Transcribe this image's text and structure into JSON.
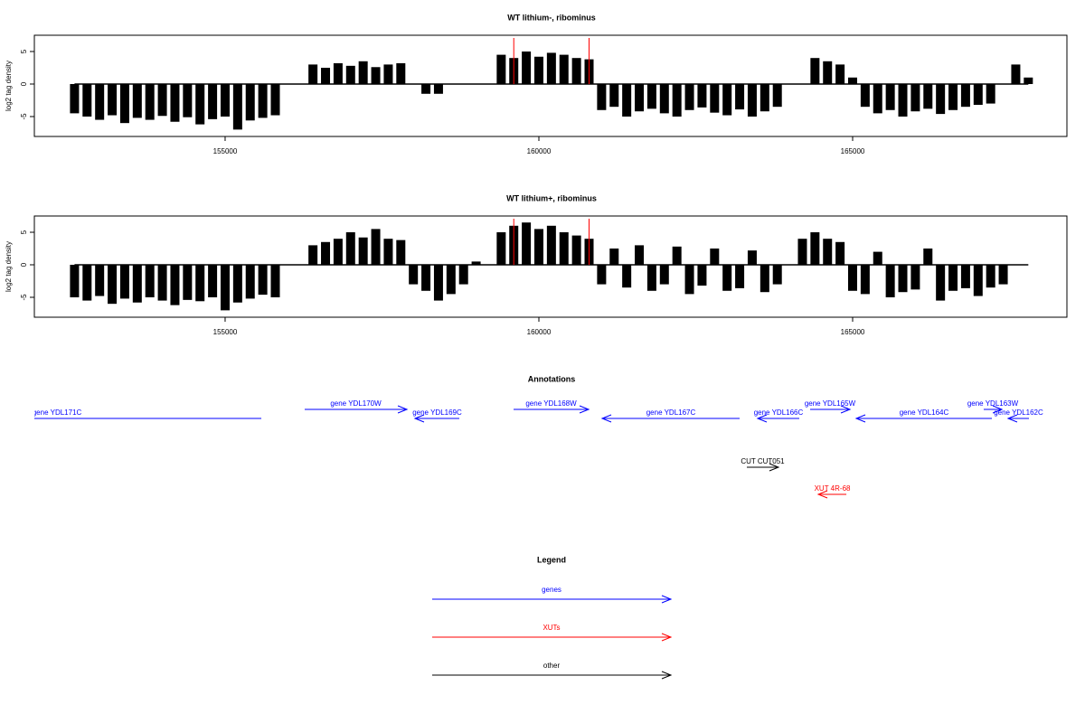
{
  "chart_data": [
    {
      "type": "bar",
      "title": "WT lithium-, ribominus",
      "ylabel": "log2 tag density",
      "color": "#000000",
      "xlim": [
        151960,
        168415
      ],
      "ylim": [
        -8.06,
        7.5
      ],
      "xticks": [
        155000,
        160000,
        165000
      ],
      "yticks": [
        -5,
        0,
        5
      ],
      "markers": {
        "color": "#ff0000",
        "values": [
          159600,
          160800
        ]
      },
      "x": [
        152600,
        152800,
        153000,
        153200,
        153400,
        153600,
        153800,
        154000,
        154200,
        154400,
        154600,
        154800,
        155000,
        155200,
        155400,
        155600,
        155800,
        156000,
        156200,
        156400,
        156600,
        156800,
        157000,
        157200,
        157400,
        157600,
        157800,
        158000,
        158200,
        158400,
        158600,
        158800,
        159000,
        159200,
        159400,
        159600,
        159800,
        160000,
        160200,
        160400,
        160600,
        160800,
        161000,
        161200,
        161400,
        161600,
        161800,
        162000,
        162200,
        162400,
        162600,
        162800,
        163000,
        163200,
        163400,
        163600,
        163800,
        164000,
        164200,
        164400,
        164600,
        164800,
        165000,
        165200,
        165400,
        165600,
        165800,
        166000,
        166200,
        166400,
        166600,
        166800,
        167000,
        167200,
        167400,
        167600,
        167800
      ],
      "values": [
        -4.5,
        -5,
        -5.5,
        -4.8,
        -6,
        -5.2,
        -5.5,
        -4.9,
        -5.8,
        -5.1,
        -6.2,
        -5.4,
        -5,
        -7,
        -5.6,
        -5.2,
        -4.8,
        0,
        0,
        3,
        2.5,
        3.2,
        2.8,
        3.5,
        2.6,
        3,
        3.2,
        0,
        -1.5,
        -1.5,
        0,
        0,
        0,
        0,
        4.5,
        4,
        5,
        4.2,
        4.8,
        4.5,
        4,
        3.8,
        -4,
        -3.5,
        -5,
        -4.2,
        -3.8,
        -4.5,
        -5,
        -4,
        -3.6,
        -4.4,
        -4.8,
        -3.9,
        -5,
        -4.2,
        -3.5,
        0,
        0,
        4,
        3.5,
        3,
        1,
        -3.5,
        -4.5,
        -4,
        -5,
        -4.2,
        -3.8,
        -4.6,
        -4,
        -3.5,
        -3.2,
        -3,
        0,
        3,
        1
      ]
    },
    {
      "type": "bar",
      "title": "WT lithium+, ribominus",
      "ylabel": "log2 tag density",
      "color": "#000000",
      "xlim": [
        151960,
        168415
      ],
      "ylim": [
        -8.06,
        7.5
      ],
      "xticks": [
        155000,
        160000,
        165000
      ],
      "yticks": [
        -5,
        0,
        5
      ],
      "markers": {
        "color": "#ff0000",
        "values": [
          159600,
          160800
        ]
      },
      "x": [
        152600,
        152800,
        153000,
        153200,
        153400,
        153600,
        153800,
        154000,
        154200,
        154400,
        154600,
        154800,
        155000,
        155200,
        155400,
        155600,
        155800,
        156000,
        156200,
        156400,
        156600,
        156800,
        157000,
        157200,
        157400,
        157600,
        157800,
        158000,
        158200,
        158400,
        158600,
        158800,
        159000,
        159200,
        159400,
        159600,
        159800,
        160000,
        160200,
        160400,
        160600,
        160800,
        161000,
        161200,
        161400,
        161600,
        161800,
        162000,
        162200,
        162400,
        162600,
        162800,
        163000,
        163200,
        163400,
        163600,
        163800,
        164000,
        164200,
        164400,
        164600,
        164800,
        165000,
        165200,
        165400,
        165600,
        165800,
        166000,
        166200,
        166400,
        166600,
        166800,
        167000,
        167200,
        167400,
        167600,
        167800
      ],
      "values": [
        -5,
        -5.5,
        -4.8,
        -6,
        -5.2,
        -5.8,
        -5,
        -5.5,
        -6.2,
        -5.4,
        -5.6,
        -5,
        -7,
        -5.8,
        -5.2,
        -4.6,
        -5,
        0,
        0,
        3,
        3.5,
        4,
        5,
        4.2,
        5.5,
        4,
        3.8,
        -3,
        -4,
        -5.5,
        -4.5,
        -3,
        0.5,
        0,
        5,
        6,
        6.5,
        5.5,
        6,
        5,
        4.5,
        4,
        -3,
        2.5,
        -3.5,
        3,
        -4,
        -3,
        2.8,
        -4.5,
        -3.2,
        2.5,
        -4,
        -3.6,
        2.2,
        -4.2,
        -3,
        0,
        4,
        5,
        4,
        3.5,
        -4,
        -4.5,
        2,
        -5,
        -4.2,
        -3.8,
        2.5,
        -5.5,
        -4,
        -3.6,
        -4.8,
        -3.5,
        -3,
        0,
        0
      ]
    }
  ],
  "annotations": {
    "title": "Annotations",
    "xlim": [
      151960,
      168415
    ],
    "features": [
      {
        "label": "gene YDL171C",
        "start": 149064,
        "end": 155577,
        "strand": "-",
        "category": "genes"
      },
      {
        "label": "gene YDL170W",
        "start": 156268,
        "end": 157897,
        "strand": "+",
        "category": "genes"
      },
      {
        "label": "gene YDL169C",
        "start": 158026,
        "end": 158732,
        "strand": "-",
        "category": "genes"
      },
      {
        "label": "gene YDL168W",
        "start": 159597,
        "end": 160793,
        "strand": "+",
        "category": "genes"
      },
      {
        "label": "gene YDL167C",
        "start": 161009,
        "end": 163199,
        "strand": "-",
        "category": "genes"
      },
      {
        "label": "gene YDL166C",
        "start": 163487,
        "end": 164150,
        "strand": "-",
        "category": "genes"
      },
      {
        "label": "gene YDL165W",
        "start": 164323,
        "end": 164957,
        "strand": "+",
        "category": "genes"
      },
      {
        "label": "gene YDL164C",
        "start": 165058,
        "end": 167219,
        "strand": "-",
        "category": "genes"
      },
      {
        "label": "gene YDL163W",
        "start": 167089,
        "end": 167378,
        "strand": "+",
        "category": "genes"
      },
      {
        "label": "gene YDL162C",
        "start": 167478,
        "end": 167810,
        "strand": "-",
        "category": "genes"
      },
      {
        "label": "CUT CUT051",
        "start": 163314,
        "end": 163818,
        "strand": "+",
        "category": "other"
      },
      {
        "label": "XUT 4R-68",
        "start": 164453,
        "end": 164900,
        "strand": "-",
        "category": "XUTs"
      }
    ]
  },
  "legend": {
    "title": "Legend",
    "entries": [
      {
        "name": "genes",
        "color": "#0000ff"
      },
      {
        "name": "XUTs",
        "color": "#ff0000"
      },
      {
        "name": "other",
        "color": "#000000"
      }
    ]
  }
}
